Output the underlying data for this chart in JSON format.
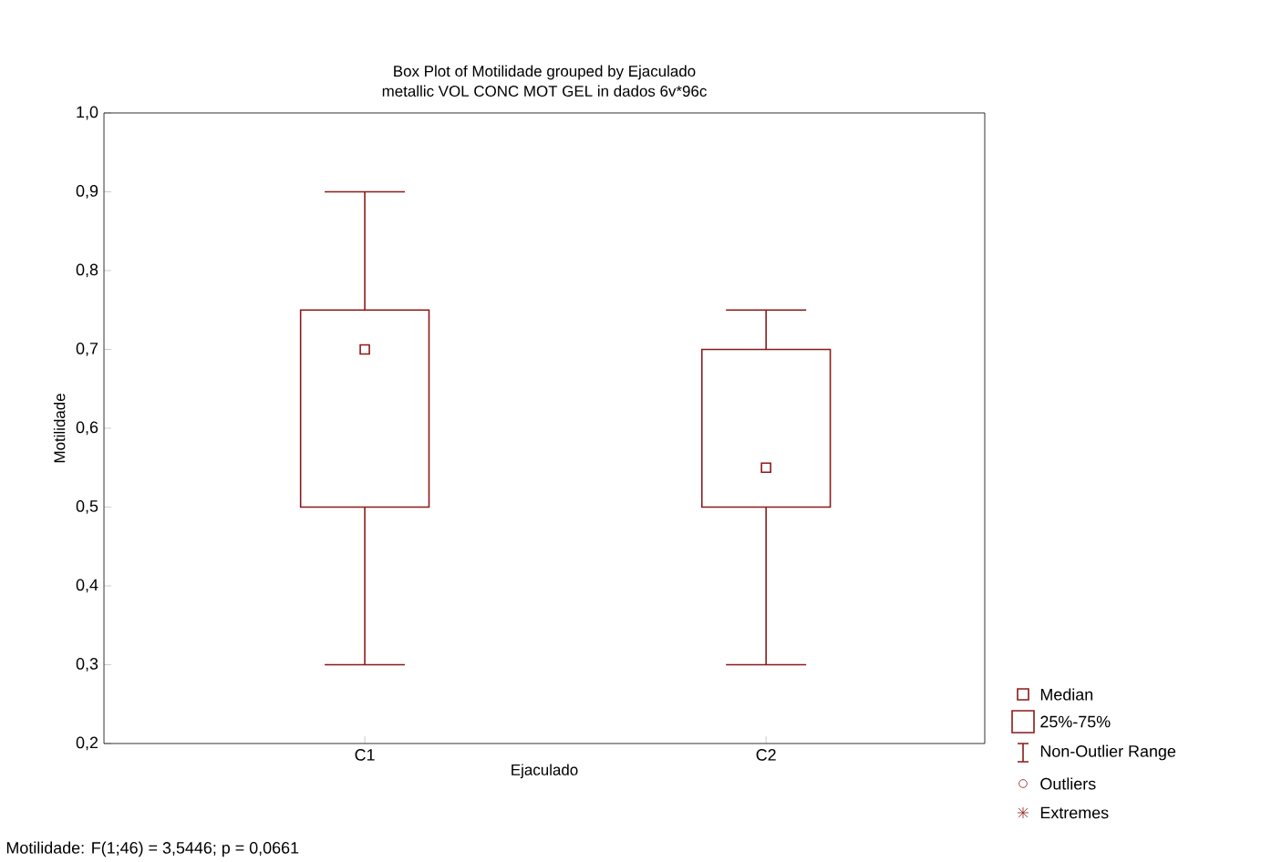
{
  "chart_data": {
    "type": "box",
    "title": "Box Plot of Motilidade grouped by  Ejaculado",
    "subtitle": "metallic VOL CONC MOT GEL in dados 6v*96c",
    "xlabel": "Ejaculado",
    "ylabel": "Motilidade",
    "categories": [
      "C1",
      "C2"
    ],
    "boxes": [
      {
        "low": 0.3,
        "q1": 0.5,
        "median": 0.7,
        "q3": 0.75,
        "high": 0.9
      },
      {
        "low": 0.3,
        "q1": 0.5,
        "median": 0.55,
        "q3": 0.7,
        "high": 0.75
      }
    ],
    "color": "#8b1a1a",
    "ylim": [
      0.2,
      1.0
    ],
    "yticks": [
      {
        "value": 0.2,
        "label": "0,2"
      },
      {
        "value": 0.3,
        "label": "0,3"
      },
      {
        "value": 0.4,
        "label": "0,4"
      },
      {
        "value": 0.5,
        "label": "0,5"
      },
      {
        "value": 0.6,
        "label": "0,6"
      },
      {
        "value": 0.7,
        "label": "0,7"
      },
      {
        "value": 0.8,
        "label": "0,8"
      },
      {
        "value": 0.9,
        "label": "0,9"
      },
      {
        "value": 1.0,
        "label": "1,0"
      }
    ],
    "annotations": [
      "Median",
      "25%-75%",
      "Non-Outlier Range",
      "Outliers",
      "Extremes",
      "Motilidade:   F(1;46) = 3,5446; p = 0,0661"
    ]
  }
}
